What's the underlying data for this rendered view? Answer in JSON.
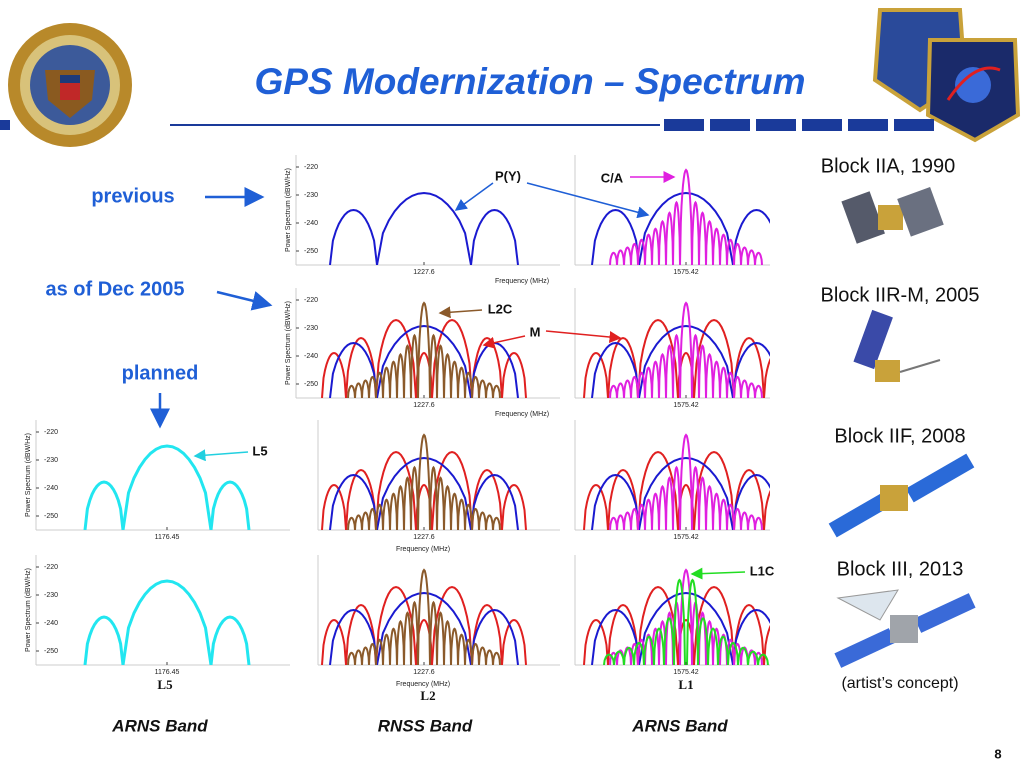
{
  "title": "GPS Modernization – Spectrum",
  "rows": [
    "previous",
    "as of Dec 2005",
    "planned"
  ],
  "plot": {
    "yticks": [
      -220,
      -230,
      -240,
      -250
    ],
    "ylabel": "Power Spectrum (dBW/Hz)",
    "xlabel": "Frequency (MHz)",
    "center_freqs": [
      "1176.45",
      "1227.6",
      "1575.42"
    ]
  },
  "annotations": [
    "P(Y)",
    "C/A",
    "L2C",
    "M",
    "L5",
    "L1C"
  ],
  "bands": {
    "names": [
      "L5",
      "L2",
      "L1"
    ],
    "types": [
      "ARNS Band",
      "RNSS Band",
      "ARNS Band"
    ]
  },
  "satellites": [
    "Block IIA, 1990",
    "Block IIR-M, 2005",
    "Block IIF, 2008",
    "Block III, 2013"
  ],
  "caption": "(artist’s concept)",
  "page_number": "8"
}
